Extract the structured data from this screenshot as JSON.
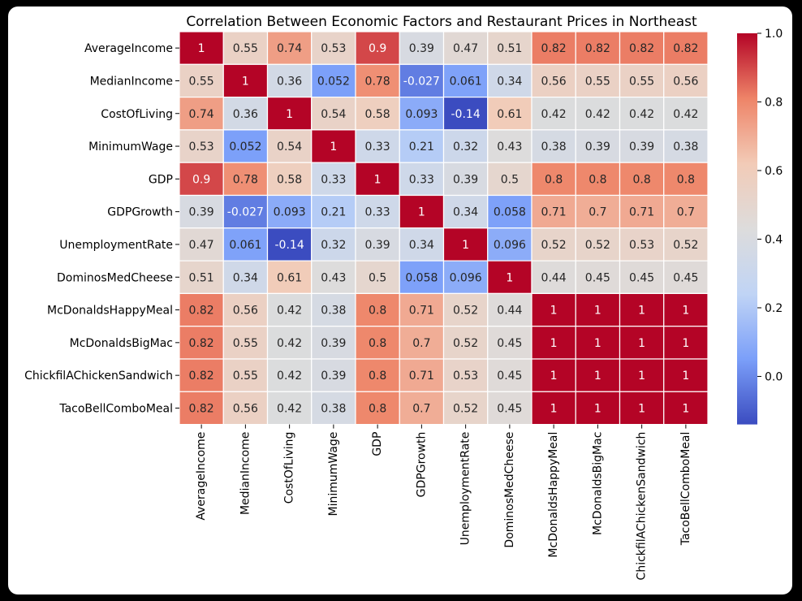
{
  "chart_data": {
    "type": "heatmap",
    "title": "Correlation Between Economic Factors and Restaurant Prices in Northeast",
    "row_labels": [
      "AverageIncome",
      "MedianIncome",
      "CostOfLiving",
      "MinimumWage",
      "GDP",
      "GDPGrowth",
      "UnemploymentRate",
      "DominosMedCheese",
      "McDonaldsHappyMeal",
      "McDonaldsBigMac",
      "ChickfilAChickenSandwich",
      "TacoBellComboMeal"
    ],
    "col_labels": [
      "AverageIncome",
      "MedianIncome",
      "CostOfLiving",
      "MinimumWage",
      "GDP",
      "GDPGrowth",
      "UnemploymentRate",
      "DominosMedCheese",
      "McDonaldsHappyMeal",
      "McDonaldsBigMac",
      "ChickfilAChickenSandwich",
      "TacoBellComboMeal"
    ],
    "values": [
      [
        1,
        0.55,
        0.74,
        0.53,
        0.9,
        0.39,
        0.47,
        0.51,
        0.82,
        0.82,
        0.82,
        0.82
      ],
      [
        0.55,
        1,
        0.36,
        0.052,
        0.78,
        -0.027,
        0.061,
        0.34,
        0.56,
        0.55,
        0.55,
        0.56
      ],
      [
        0.74,
        0.36,
        1,
        0.54,
        0.58,
        0.093,
        -0.14,
        0.61,
        0.42,
        0.42,
        0.42,
        0.42
      ],
      [
        0.53,
        0.052,
        0.54,
        1,
        0.33,
        0.21,
        0.32,
        0.43,
        0.38,
        0.39,
        0.39,
        0.38
      ],
      [
        0.9,
        0.78,
        0.58,
        0.33,
        1,
        0.33,
        0.39,
        0.5,
        0.8,
        0.8,
        0.8,
        0.8
      ],
      [
        0.39,
        -0.027,
        0.093,
        0.21,
        0.33,
        1,
        0.34,
        0.058,
        0.71,
        0.7,
        0.71,
        0.7
      ],
      [
        0.47,
        0.061,
        -0.14,
        0.32,
        0.39,
        0.34,
        1,
        0.096,
        0.52,
        0.52,
        0.53,
        0.52
      ],
      [
        0.51,
        0.34,
        0.61,
        0.43,
        0.5,
        0.058,
        0.096,
        1,
        0.44,
        0.45,
        0.45,
        0.45
      ],
      [
        0.82,
        0.56,
        0.42,
        0.38,
        0.8,
        0.71,
        0.52,
        0.44,
        1,
        1,
        1,
        1
      ],
      [
        0.82,
        0.55,
        0.42,
        0.39,
        0.8,
        0.7,
        0.52,
        0.45,
        1,
        1,
        1,
        1
      ],
      [
        0.82,
        0.55,
        0.42,
        0.39,
        0.8,
        0.71,
        0.53,
        0.45,
        1,
        1,
        1,
        1
      ],
      [
        0.82,
        0.56,
        0.42,
        0.38,
        0.8,
        0.7,
        0.52,
        0.45,
        1,
        1,
        1,
        1
      ]
    ],
    "value_labels": [
      [
        "1",
        "0.55",
        "0.74",
        "0.53",
        "0.9",
        "0.39",
        "0.47",
        "0.51",
        "0.82",
        "0.82",
        "0.82",
        "0.82"
      ],
      [
        "0.55",
        "1",
        "0.36",
        "0.052",
        "0.78",
        "-0.027",
        "0.061",
        "0.34",
        "0.56",
        "0.55",
        "0.55",
        "0.56"
      ],
      [
        "0.74",
        "0.36",
        "1",
        "0.54",
        "0.58",
        "0.093",
        "-0.14",
        "0.61",
        "0.42",
        "0.42",
        "0.42",
        "0.42"
      ],
      [
        "0.53",
        "0.052",
        "0.54",
        "1",
        "0.33",
        "0.21",
        "0.32",
        "0.43",
        "0.38",
        "0.39",
        "0.39",
        "0.38"
      ],
      [
        "0.9",
        "0.78",
        "0.58",
        "0.33",
        "1",
        "0.33",
        "0.39",
        "0.5",
        "0.8",
        "0.8",
        "0.8",
        "0.8"
      ],
      [
        "0.39",
        "-0.027",
        "0.093",
        "0.21",
        "0.33",
        "1",
        "0.34",
        "0.058",
        "0.71",
        "0.7",
        "0.71",
        "0.7"
      ],
      [
        "0.47",
        "0.061",
        "-0.14",
        "0.32",
        "0.39",
        "0.34",
        "1",
        "0.096",
        "0.52",
        "0.52",
        "0.53",
        "0.52"
      ],
      [
        "0.51",
        "0.34",
        "0.61",
        "0.43",
        "0.5",
        "0.058",
        "0.096",
        "1",
        "0.44",
        "0.45",
        "0.45",
        "0.45"
      ],
      [
        "0.82",
        "0.56",
        "0.42",
        "0.38",
        "0.8",
        "0.71",
        "0.52",
        "0.44",
        "1",
        "1",
        "1",
        "1"
      ],
      [
        "0.82",
        "0.55",
        "0.42",
        "0.39",
        "0.8",
        "0.7",
        "0.52",
        "0.45",
        "1",
        "1",
        "1",
        "1"
      ],
      [
        "0.82",
        "0.55",
        "0.42",
        "0.39",
        "0.8",
        "0.71",
        "0.53",
        "0.45",
        "1",
        "1",
        "1",
        "1"
      ],
      [
        "0.82",
        "0.56",
        "0.42",
        "0.38",
        "0.8",
        "0.7",
        "0.52",
        "0.45",
        "1",
        "1",
        "1",
        "1"
      ]
    ],
    "colormap": "coolwarm",
    "colormap_stops": [
      "#3b4cc0",
      "#7b9ff9",
      "#c0d4f5",
      "#dddcdc",
      "#f2cbb7",
      "#ee8468",
      "#b40426"
    ],
    "vmin": -0.14,
    "vmax": 1.0,
    "colorbar_ticks": [
      1.0,
      0.8,
      0.6,
      0.4,
      0.2,
      0.0
    ],
    "colorbar_tick_labels": [
      "1.0",
      "0.8",
      "0.6",
      "0.4",
      "0.2",
      "0.0"
    ]
  }
}
